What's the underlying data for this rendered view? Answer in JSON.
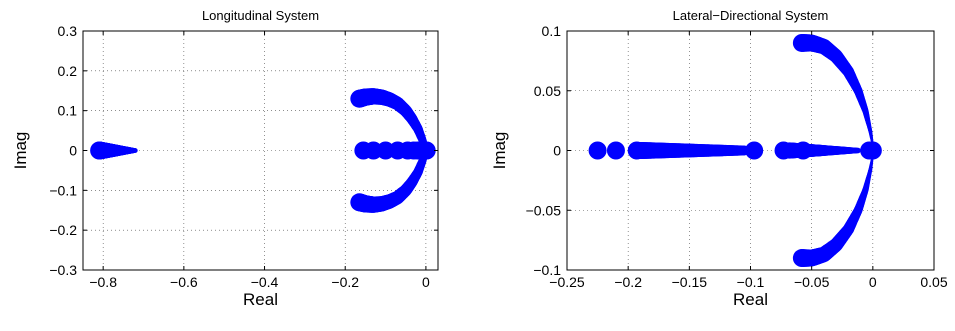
{
  "chart_data": [
    {
      "type": "scatter",
      "title": "Longitudinal System",
      "xlabel": "Real",
      "ylabel": "Imag",
      "xlim": [
        -0.85,
        0.03
      ],
      "ylim": [
        -0.3,
        0.3
      ],
      "xticks": [
        -0.8,
        -0.6,
        -0.4,
        -0.2,
        0
      ],
      "xtick_labels": [
        "−0.8",
        "−0.6",
        "−0.4",
        "−0.2",
        "0"
      ],
      "yticks": [
        -0.3,
        -0.2,
        -0.1,
        0,
        0.1,
        0.2,
        0.3
      ],
      "ytick_labels": [
        "−0.3",
        "−0.2",
        "−0.1",
        "0",
        "0.1",
        "0.2",
        "0.3"
      ],
      "grid": true,
      "marker_color": "#0000ff",
      "paths": [
        {
          "points": [
            [
              -0.81,
              0
            ],
            [
              -0.78,
              0
            ],
            [
              -0.75,
              0
            ],
            [
              -0.72,
              0
            ]
          ],
          "size": [
            1.0,
            0.25
          ]
        },
        {
          "points": [
            [
              -0.165,
              0.13
            ],
            [
              -0.15,
              0.134
            ],
            [
              -0.13,
              0.136
            ],
            [
              -0.11,
              0.134
            ],
            [
              -0.09,
              0.128
            ],
            [
              -0.07,
              0.118
            ],
            [
              -0.05,
              0.1
            ],
            [
              -0.035,
              0.08
            ],
            [
              -0.02,
              0.055
            ],
            [
              -0.01,
              0.03
            ],
            [
              -0.003,
              0.01
            ]
          ],
          "size": [
            1.0,
            0.4
          ]
        },
        {
          "points": [
            [
              -0.165,
              -0.13
            ],
            [
              -0.15,
              -0.134
            ],
            [
              -0.13,
              -0.136
            ],
            [
              -0.11,
              -0.134
            ],
            [
              -0.09,
              -0.128
            ],
            [
              -0.07,
              -0.118
            ],
            [
              -0.05,
              -0.1
            ],
            [
              -0.035,
              -0.08
            ],
            [
              -0.02,
              -0.055
            ],
            [
              -0.01,
              -0.03
            ],
            [
              -0.003,
              -0.01
            ]
          ],
          "size": [
            1.0,
            0.4
          ]
        }
      ],
      "points": [
        [
          -0.155,
          0
        ],
        [
          -0.13,
          0
        ],
        [
          -0.1,
          0
        ],
        [
          -0.07,
          0
        ],
        [
          -0.045,
          0
        ],
        [
          -0.03,
          0
        ],
        [
          -0.02,
          0
        ],
        [
          -0.012,
          0
        ],
        [
          -0.005,
          0
        ],
        [
          0.002,
          0
        ]
      ]
    },
    {
      "type": "scatter",
      "title": "Lateral−Directional System",
      "xlabel": "Real",
      "ylabel": "Imag",
      "xlim": [
        -0.25,
        0.05
      ],
      "ylim": [
        -0.1,
        0.1
      ],
      "xticks": [
        -0.25,
        -0.2,
        -0.15,
        -0.1,
        -0.05,
        0,
        0.05
      ],
      "xtick_labels": [
        "−0.25",
        "−0.2",
        "−0.15",
        "−0.1",
        "−0.05",
        "0",
        "0.05"
      ],
      "yticks": [
        -0.1,
        -0.05,
        0,
        0.05,
        0.1
      ],
      "ytick_labels": [
        "−0.1",
        "−0.05",
        "0",
        "0.05",
        "0.1"
      ],
      "grid": true,
      "marker_color": "#0000ff",
      "paths": [
        {
          "points": [
            [
              -0.058,
              0.09
            ],
            [
              -0.05,
              0.09
            ],
            [
              -0.04,
              0.087
            ],
            [
              -0.03,
              0.079
            ],
            [
              -0.02,
              0.066
            ],
            [
              -0.012,
              0.05
            ],
            [
              -0.006,
              0.033
            ],
            [
              -0.002,
              0.016
            ],
            [
              0.0,
              0.004
            ]
          ],
          "size": [
            1.0,
            0.12
          ]
        },
        {
          "points": [
            [
              -0.058,
              -0.09
            ],
            [
              -0.05,
              -0.09
            ],
            [
              -0.04,
              -0.087
            ],
            [
              -0.03,
              -0.079
            ],
            [
              -0.02,
              -0.066
            ],
            [
              -0.012,
              -0.05
            ],
            [
              -0.006,
              -0.033
            ],
            [
              -0.002,
              -0.016
            ],
            [
              0.0,
              -0.004
            ]
          ],
          "size": [
            1.0,
            0.12
          ]
        },
        {
          "points": [
            [
              -0.19,
              0
            ],
            [
              -0.17,
              0
            ],
            [
              -0.15,
              0
            ],
            [
              -0.13,
              0
            ],
            [
              -0.115,
              0
            ],
            [
              -0.105,
              0
            ]
          ],
          "size": [
            0.95,
            0.55
          ]
        },
        {
          "points": [
            [
              -0.068,
              0
            ],
            [
              -0.05,
              0
            ],
            [
              -0.03,
              0
            ],
            [
              -0.012,
              0
            ]
          ],
          "size": [
            0.9,
            0.3
          ]
        }
      ],
      "points": [
        [
          -0.225,
          0
        ],
        [
          -0.21,
          0
        ],
        [
          -0.193,
          0
        ],
        [
          -0.097,
          0
        ],
        [
          -0.073,
          0
        ],
        [
          -0.057,
          0
        ],
        [
          -0.003,
          0
        ],
        [
          0.0,
          0
        ]
      ]
    }
  ]
}
